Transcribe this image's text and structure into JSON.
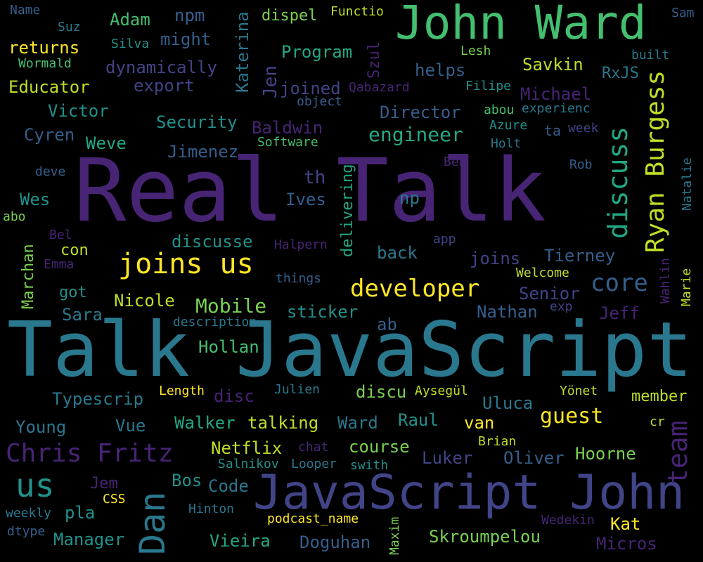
{
  "palette": {
    "background": "#000000",
    "purple": "#482475",
    "indigo": "#414487",
    "blue": "#355f8d",
    "teal": "#2a788e",
    "cyan": "#21918c",
    "sea": "#22a884",
    "green": "#44bf70",
    "lime": "#7ad151",
    "yellowgreen": "#bddf26",
    "yellow": "#fde725"
  },
  "words": [
    {
      "text": "Real Talk"
    },
    {
      "text": "Talk JavaScript"
    },
    {
      "text": "JavaScript John"
    },
    {
      "text": "John Ward"
    },
    {
      "text": "Dan"
    },
    {
      "text": "Ryan Burgess"
    },
    {
      "text": "discuss"
    },
    {
      "text": "team"
    },
    {
      "text": "us"
    },
    {
      "text": "joins us"
    },
    {
      "text": "Chris Fritz"
    },
    {
      "text": "developer"
    },
    {
      "text": "core"
    },
    {
      "text": "guest"
    },
    {
      "text": "engineer"
    },
    {
      "text": "Mobile"
    },
    {
      "text": "Name"
    },
    {
      "text": "Suz"
    },
    {
      "text": "Adam"
    },
    {
      "text": "npm"
    },
    {
      "text": "Katerina"
    },
    {
      "text": "dispel"
    },
    {
      "text": "Functio"
    },
    {
      "text": "Sam"
    },
    {
      "text": "returns"
    },
    {
      "text": "Silva"
    },
    {
      "text": "might"
    },
    {
      "text": "Program"
    },
    {
      "text": "Szul"
    },
    {
      "text": "Lesh"
    },
    {
      "text": "built"
    },
    {
      "text": "Wormald"
    },
    {
      "text": "dynamically"
    },
    {
      "text": "Jen"
    },
    {
      "text": "helps"
    },
    {
      "text": "Savkin"
    },
    {
      "text": "RxJS"
    },
    {
      "text": "Educator"
    },
    {
      "text": "export"
    },
    {
      "text": "joined"
    },
    {
      "text": "Qabazard"
    },
    {
      "text": "Filipe"
    },
    {
      "text": "Michael"
    },
    {
      "text": "object"
    },
    {
      "text": "Victor"
    },
    {
      "text": "Director"
    },
    {
      "text": "abou"
    },
    {
      "text": "experienc"
    },
    {
      "text": "Security"
    },
    {
      "text": "Baldwin"
    },
    {
      "text": "Azure"
    },
    {
      "text": "ta"
    },
    {
      "text": "week"
    },
    {
      "text": "Cyren"
    },
    {
      "text": "Software"
    },
    {
      "text": "Holt"
    },
    {
      "text": "Weve"
    },
    {
      "text": "Jimenez"
    },
    {
      "text": "Ben"
    },
    {
      "text": "Rob"
    },
    {
      "text": "deve"
    },
    {
      "text": "th"
    },
    {
      "text": "Natalie"
    },
    {
      "text": "Wes"
    },
    {
      "text": "Ives"
    },
    {
      "text": "np"
    },
    {
      "text": "delivering"
    },
    {
      "text": "abo"
    },
    {
      "text": "Bel"
    },
    {
      "text": "app"
    },
    {
      "text": "Marchan"
    },
    {
      "text": "discusse"
    },
    {
      "text": "Halpern"
    },
    {
      "text": "con"
    },
    {
      "text": "back"
    },
    {
      "text": "joins"
    },
    {
      "text": "Tierney"
    },
    {
      "text": "Emma"
    },
    {
      "text": "Wahlin"
    },
    {
      "text": "Welcome"
    },
    {
      "text": "things"
    },
    {
      "text": "Marie"
    },
    {
      "text": "got"
    },
    {
      "text": "Senior"
    },
    {
      "text": "Nicole"
    },
    {
      "text": "Sara"
    },
    {
      "text": "sticker"
    },
    {
      "text": "Nathan"
    },
    {
      "text": "exp"
    },
    {
      "text": "Jeff"
    },
    {
      "text": "description"
    },
    {
      "text": "ab"
    },
    {
      "text": "Hollan"
    },
    {
      "text": "Length"
    },
    {
      "text": "Julien"
    },
    {
      "text": "Typescrip"
    },
    {
      "text": "disc"
    },
    {
      "text": "discu"
    },
    {
      "text": "Aysegül"
    },
    {
      "text": "Uluca"
    },
    {
      "text": "Yönet"
    },
    {
      "text": "member"
    },
    {
      "text": "Young"
    },
    {
      "text": "Vue"
    },
    {
      "text": "Walker"
    },
    {
      "text": "talking"
    },
    {
      "text": "Ward"
    },
    {
      "text": "Raul"
    },
    {
      "text": "van"
    },
    {
      "text": "cr"
    },
    {
      "text": "Netflix"
    },
    {
      "text": "chat"
    },
    {
      "text": "course"
    },
    {
      "text": "Brian"
    },
    {
      "text": "Luker"
    },
    {
      "text": "Oliver"
    },
    {
      "text": "Hoorne"
    },
    {
      "text": "Salnikov"
    },
    {
      "text": "Looper"
    },
    {
      "text": "swith"
    },
    {
      "text": "Jem"
    },
    {
      "text": "Bos"
    },
    {
      "text": "Code"
    },
    {
      "text": "CSS"
    },
    {
      "text": "weekly"
    },
    {
      "text": "pla"
    },
    {
      "text": "Hinton"
    },
    {
      "text": "podcast_name"
    },
    {
      "text": "Maxim"
    },
    {
      "text": "Wedekin"
    },
    {
      "text": "Kat"
    },
    {
      "text": "dtype"
    },
    {
      "text": "Manager"
    },
    {
      "text": "Vieira"
    },
    {
      "text": "Doguhan"
    },
    {
      "text": "Skroumpelou"
    },
    {
      "text": "Micros"
    }
  ]
}
